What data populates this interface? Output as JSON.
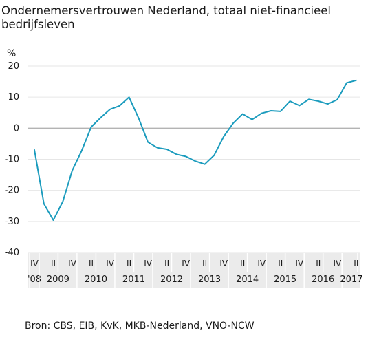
{
  "title": "Ondernemersvertrouwen Nederland, totaal niet-financieel bedrijfsleven",
  "source": "Bron: CBS, EIB, KvK, MKB-Nederland, VNO-NCW",
  "colors": {
    "line": "#1a9bbd",
    "grid": "#e6e6e6",
    "zero": "#b3b3b3",
    "band": "#ebebeb",
    "sep": "#ffffff"
  },
  "chart_data": {
    "type": "line",
    "ylabel": "%",
    "ylim": [
      -40,
      20
    ],
    "yticks": [
      -40,
      -30,
      -20,
      -10,
      0,
      10,
      20
    ],
    "grid": true,
    "x": [
      "2008 IV",
      "2009 I",
      "2009 II",
      "2009 III",
      "2009 IV",
      "2010 I",
      "2010 II",
      "2010 III",
      "2010 IV",
      "2011 I",
      "2011 II",
      "2011 III",
      "2011 IV",
      "2012 I",
      "2012 II",
      "2012 III",
      "2012 IV",
      "2013 I",
      "2013 II",
      "2013 III",
      "2013 IV",
      "2014 I",
      "2014 II",
      "2014 III",
      "2014 IV",
      "2015 I",
      "2015 II",
      "2015 III",
      "2015 IV",
      "2016 I",
      "2016 II",
      "2016 III",
      "2016 IV",
      "2017 I",
      "2017 II"
    ],
    "series": [
      {
        "values": [
          -7,
          -24.3,
          -29.6,
          -23.6,
          -13.6,
          -7.2,
          0.4,
          3.4,
          6.1,
          7.2,
          10,
          3.3,
          -4.5,
          -6.3,
          -6.8,
          -8.4,
          -9.1,
          -10.6,
          -11.6,
          -8.7,
          -2.7,
          1.6,
          4.6,
          2.8,
          4.8,
          5.6,
          5.4,
          8.7,
          7.3,
          9.3,
          8.7,
          7.8,
          9.2,
          14.6,
          15.4
        ]
      }
    ],
    "quarter_labels": [
      {
        "label": "IV",
        "index": 0
      },
      {
        "label": "II",
        "index": 2
      },
      {
        "label": "IV",
        "index": 4
      },
      {
        "label": "II",
        "index": 6
      },
      {
        "label": "IV",
        "index": 8
      },
      {
        "label": "II",
        "index": 10
      },
      {
        "label": "IV",
        "index": 12
      },
      {
        "label": "II",
        "index": 14
      },
      {
        "label": "IV",
        "index": 16
      },
      {
        "label": "II",
        "index": 18
      },
      {
        "label": "IV",
        "index": 20
      },
      {
        "label": "II",
        "index": 22
      },
      {
        "label": "IV",
        "index": 24
      },
      {
        "label": "II",
        "index": 26
      },
      {
        "label": "IV",
        "index": 28
      },
      {
        "label": "II",
        "index": 30
      },
      {
        "label": "IV",
        "index": 32
      },
      {
        "label": "II",
        "index": 34
      }
    ],
    "year_labels": [
      {
        "label": "'08",
        "first": 0,
        "last": 0
      },
      {
        "label": "2009",
        "first": 1,
        "last": 4
      },
      {
        "label": "2010",
        "first": 5,
        "last": 8
      },
      {
        "label": "2011",
        "first": 9,
        "last": 12
      },
      {
        "label": "2012",
        "first": 13,
        "last": 16
      },
      {
        "label": "2013",
        "first": 17,
        "last": 20
      },
      {
        "label": "2014",
        "first": 21,
        "last": 24
      },
      {
        "label": "2015",
        "first": 25,
        "last": 28
      },
      {
        "label": "2016",
        "first": 29,
        "last": 32
      },
      {
        "label": "2017",
        "first": 33,
        "last": 34
      }
    ]
  }
}
